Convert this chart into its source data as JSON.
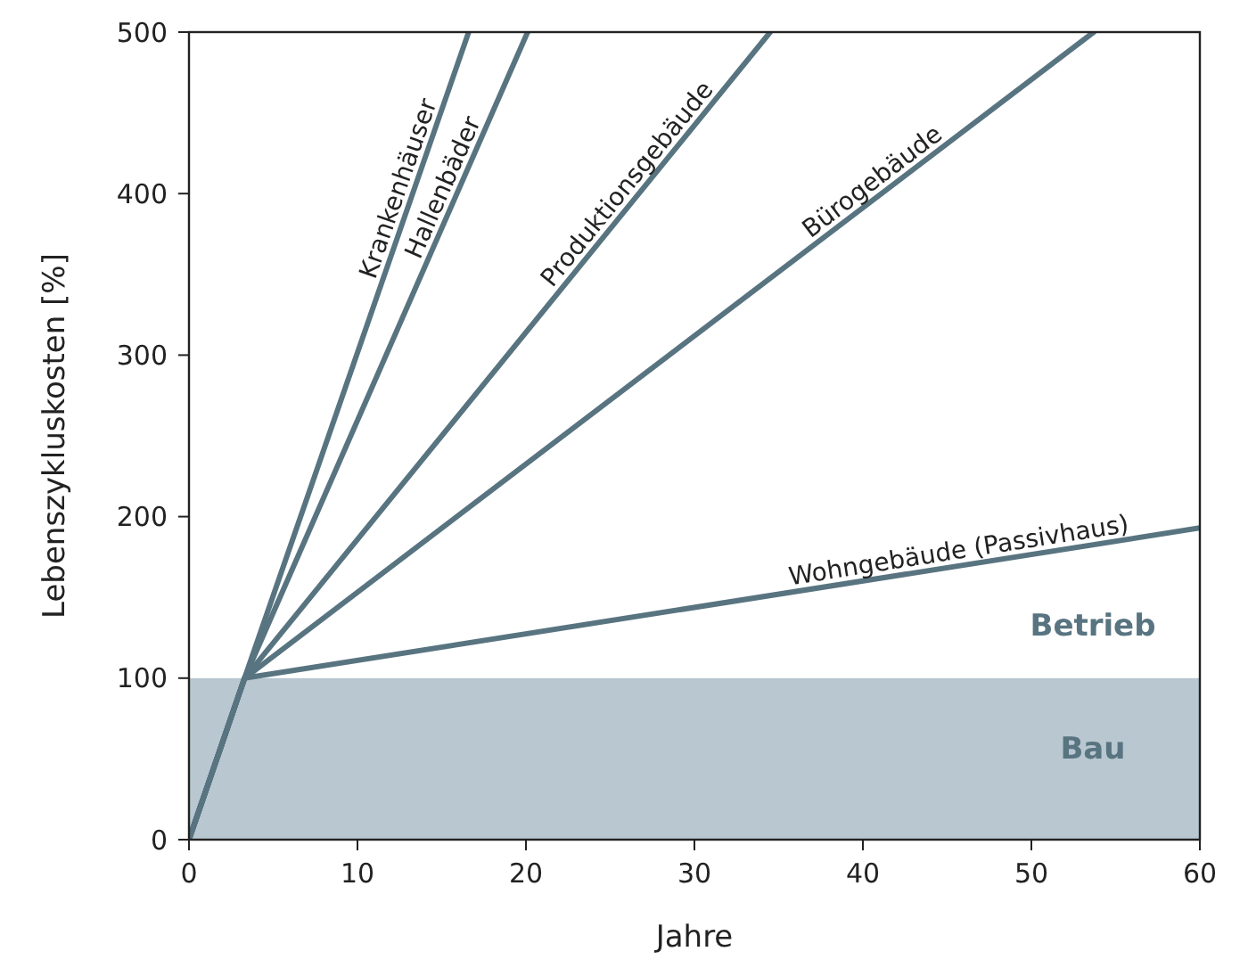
{
  "chart_data": {
    "type": "line",
    "xlabel": "Jahre",
    "ylabel": "Lebenszykluskosten [%]",
    "xlim": [
      0,
      60
    ],
    "ylim": [
      0,
      500
    ],
    "xticks": [
      0,
      10,
      20,
      30,
      40,
      50,
      60
    ],
    "yticks": [
      0,
      100,
      200,
      300,
      400,
      500
    ],
    "grid": false,
    "marker": "none",
    "line_style": "solid",
    "bands": [
      {
        "axis": "y",
        "from": 0,
        "to": 100,
        "color": "#b8c7d0"
      }
    ],
    "annotations": [
      "Betrieb",
      "Bau"
    ],
    "series": [
      {
        "name": "Krankenhäuser",
        "color": "#587480",
        "x": [
          0,
          3.3,
          16.6
        ],
        "values": [
          0,
          100,
          500
        ]
      },
      {
        "name": "Hallenbäder",
        "color": "#587480",
        "x": [
          0,
          3.3,
          20.1
        ],
        "values": [
          0,
          100,
          500
        ]
      },
      {
        "name": "Produktionsgebäude",
        "color": "#587480",
        "x": [
          0,
          3.3,
          34.5
        ],
        "values": [
          0,
          100,
          500
        ]
      },
      {
        "name": "Bürogebäude",
        "color": "#587480",
        "x": [
          0,
          3.3,
          53.7
        ],
        "values": [
          0,
          100,
          500
        ]
      },
      {
        "name": "Wohngebäude (Passivhaus)",
        "color": "#587480",
        "x": [
          0,
          3.3,
          60
        ],
        "values": [
          0,
          100,
          193
        ]
      }
    ]
  }
}
